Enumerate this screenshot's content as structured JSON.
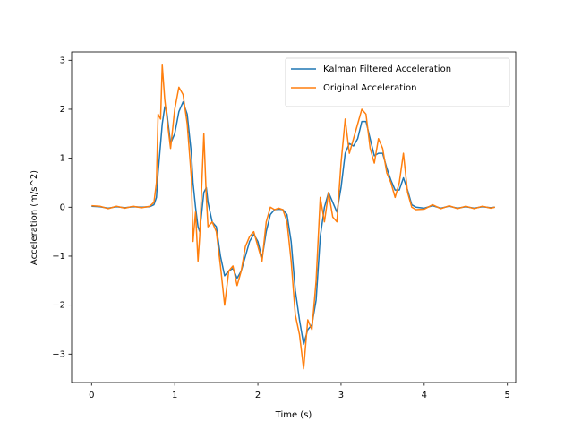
{
  "chart_data": {
    "type": "line",
    "xlabel": "Time (s)",
    "ylabel": "Acceleration (m/s^2)",
    "x": [
      0,
      0.1,
      0.2,
      0.3,
      0.4,
      0.5,
      0.6,
      0.7,
      0.75,
      0.78,
      0.8,
      0.83,
      0.85,
      0.88,
      0.9,
      0.95,
      1.0,
      1.05,
      1.1,
      1.15,
      1.2,
      1.22,
      1.25,
      1.28,
      1.3,
      1.35,
      1.38,
      1.4,
      1.45,
      1.5,
      1.55,
      1.6,
      1.65,
      1.7,
      1.75,
      1.8,
      1.85,
      1.9,
      1.95,
      2.0,
      2.05,
      2.1,
      2.15,
      2.2,
      2.25,
      2.3,
      2.35,
      2.4,
      2.45,
      2.5,
      2.55,
      2.6,
      2.65,
      2.7,
      2.75,
      2.8,
      2.85,
      2.9,
      2.95,
      3.0,
      3.05,
      3.1,
      3.15,
      3.2,
      3.25,
      3.3,
      3.35,
      3.4,
      3.45,
      3.5,
      3.55,
      3.6,
      3.65,
      3.7,
      3.75,
      3.8,
      3.85,
      3.9,
      4.0,
      4.1,
      4.2,
      4.3,
      4.4,
      4.5,
      4.6,
      4.7,
      4.8,
      4.85
    ],
    "series": [
      {
        "name": "Kalman Filtered Acceleration",
        "color": "#1f77b4",
        "values": [
          0.02,
          0.01,
          -0.02,
          0.01,
          -0.01,
          0.01,
          0,
          0.01,
          0.05,
          0.2,
          0.7,
          1.3,
          1.7,
          2.05,
          2.0,
          1.3,
          1.5,
          1.95,
          2.15,
          1.9,
          1.1,
          0.5,
          0.0,
          -0.4,
          -0.5,
          0.3,
          0.4,
          0.1,
          -0.3,
          -0.4,
          -1.0,
          -1.4,
          -1.3,
          -1.25,
          -1.45,
          -1.3,
          -1.0,
          -0.7,
          -0.55,
          -0.7,
          -1.05,
          -0.5,
          -0.15,
          -0.05,
          -0.04,
          -0.05,
          -0.15,
          -0.7,
          -1.7,
          -2.3,
          -2.8,
          -2.5,
          -2.4,
          -1.9,
          -0.6,
          0.0,
          0.3,
          0.1,
          -0.1,
          0.4,
          1.1,
          1.3,
          1.25,
          1.4,
          1.75,
          1.75,
          1.4,
          1.05,
          1.1,
          1.1,
          0.8,
          0.55,
          0.35,
          0.35,
          0.6,
          0.35,
          0.05,
          0,
          -0.02,
          0.03,
          -0.02,
          0.02,
          -0.02,
          0.01,
          -0.02,
          0.01,
          -0.01,
          0
        ]
      },
      {
        "name": "Original Acceleration",
        "color": "#ff7f0e",
        "values": [
          0.03,
          0.02,
          -0.03,
          0.02,
          -0.02,
          0.02,
          -0.01,
          0.02,
          0.1,
          0.5,
          1.9,
          1.8,
          2.9,
          2.2,
          1.9,
          1.2,
          2.0,
          2.45,
          2.3,
          1.7,
          0.6,
          -0.7,
          -0.1,
          -1.1,
          -0.6,
          1.5,
          0.2,
          -0.4,
          -0.3,
          -0.5,
          -1.2,
          -2.0,
          -1.3,
          -1.2,
          -1.6,
          -1.3,
          -0.8,
          -0.6,
          -0.5,
          -0.8,
          -1.1,
          -0.3,
          0.0,
          -0.05,
          -0.02,
          -0.05,
          -0.3,
          -1.1,
          -2.2,
          -2.6,
          -3.3,
          -2.3,
          -2.5,
          -1.5,
          0.2,
          -0.3,
          0.3,
          -0.2,
          -0.3,
          0.9,
          1.8,
          1.1,
          1.4,
          1.7,
          2.0,
          1.9,
          1.2,
          0.9,
          1.4,
          1.2,
          0.7,
          0.5,
          0.2,
          0.5,
          1.1,
          0.3,
          0.0,
          -0.05,
          -0.04,
          0.05,
          -0.03,
          0.03,
          -0.03,
          0.02,
          -0.03,
          0.02,
          -0.02,
          0.0
        ]
      }
    ],
    "xlim": [
      -0.24,
      5.1
    ],
    "ylim": [
      -3.58,
      3.17
    ],
    "xticks": [
      0,
      1,
      2,
      3,
      4,
      5
    ],
    "yticks": [
      {
        "value": -3,
        "label": "−3"
      },
      {
        "value": -2,
        "label": "−2"
      },
      {
        "value": -1,
        "label": "−1"
      },
      0,
      1,
      2,
      3
    ],
    "legend": "upper right"
  }
}
